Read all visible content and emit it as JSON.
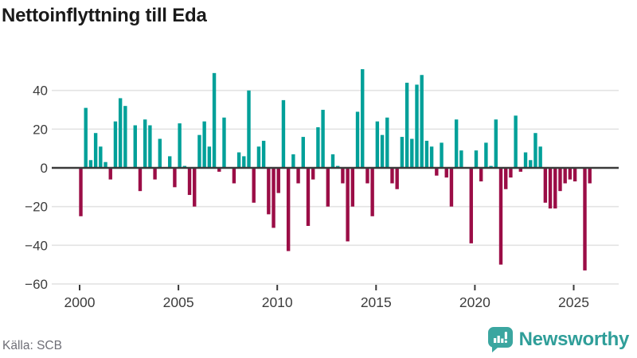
{
  "title": "Nettoinflyttning till Eda",
  "source": "Källa: SCB",
  "logo": {
    "text": "Newsworthy"
  },
  "colors": {
    "positive": "#00a099",
    "negative": "#9b0d46",
    "grid": "#e3e3e3",
    "zero_line": "#3a3a3a",
    "axis_text": "#3d3d3d",
    "source_text": "#6e6e76",
    "logo_teal": "#3ba6a0"
  },
  "chart_data": {
    "type": "bar",
    "title": "Nettoinflyttning till Eda",
    "x_start_year": 2000,
    "frequency": "quarterly",
    "x_ticks": [
      2000,
      2005,
      2010,
      2015,
      2020,
      2025
    ],
    "y_ticks": [
      40,
      20,
      0,
      -20,
      -40,
      -60
    ],
    "ylim": [
      -60,
      52
    ],
    "grid": true,
    "values": [
      -25,
      31,
      4,
      18,
      11,
      3,
      -6,
      24,
      36,
      32,
      0,
      22,
      -12,
      25,
      22,
      -6,
      15,
      0,
      6,
      -10,
      23,
      1,
      -14,
      -20,
      17,
      24,
      11,
      49,
      -2,
      26,
      0,
      -8,
      8,
      6,
      40,
      -18,
      11,
      14,
      -24,
      -31,
      -13,
      35,
      -43,
      7,
      -8,
      16,
      -30,
      -6,
      21,
      30,
      -20,
      7,
      1,
      -8,
      -38,
      -20,
      29,
      51,
      -8,
      -25,
      24,
      17,
      26,
      -8,
      -11,
      16,
      44,
      15,
      43,
      48,
      14,
      11,
      -4,
      13,
      -5,
      -20,
      25,
      9,
      0,
      -39,
      9,
      -7,
      13,
      1,
      25,
      -50,
      -11,
      -5,
      27,
      -2,
      8,
      4,
      18,
      11,
      -18,
      -21,
      -21,
      -12,
      -8,
      -6,
      -7,
      0,
      -53,
      -8
    ]
  }
}
